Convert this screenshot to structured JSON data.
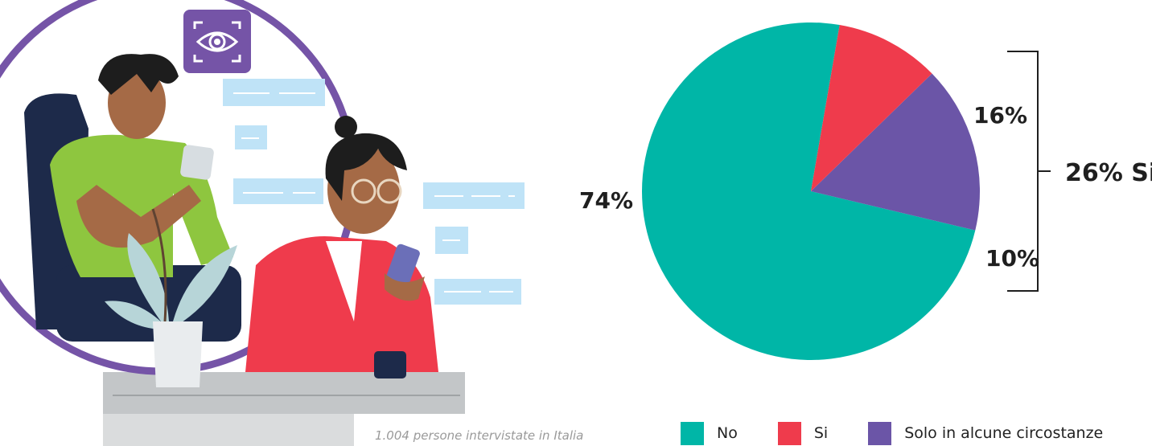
{
  "chart_data": {
    "type": "pie",
    "categories": [
      "No",
      "Si",
      "Solo in alcune circostanze"
    ],
    "values": [
      74,
      10,
      16
    ],
    "value_labels": [
      "74%",
      "10%",
      "16%"
    ],
    "colors": [
      "#00b6a7",
      "#ef3b4c",
      "#6b55a7"
    ],
    "bracket_label": "26% Si",
    "legend_position": "bottom"
  },
  "footnote": "1.004 persone intervistate in Italia",
  "illustration": {
    "icon": "eye-icon",
    "accent_color": "#7554a7"
  }
}
